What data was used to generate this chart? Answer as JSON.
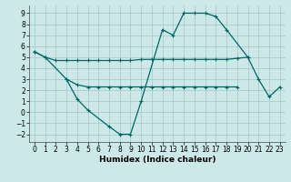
{
  "xlabel": "Humidex (Indice chaleur)",
  "xlim": [
    -0.5,
    23.5
  ],
  "ylim": [
    -2.7,
    9.7
  ],
  "yticks": [
    -2,
    -1,
    0,
    1,
    2,
    3,
    4,
    5,
    6,
    7,
    8,
    9
  ],
  "xticks": [
    0,
    1,
    2,
    3,
    4,
    5,
    6,
    7,
    8,
    9,
    10,
    11,
    12,
    13,
    14,
    15,
    16,
    17,
    18,
    19,
    20,
    21,
    22,
    23
  ],
  "bg_color": "#cce8e8",
  "grid_color": "#aacccc",
  "line_color": "#006666",
  "line1_x": [
    0,
    1,
    2,
    3,
    4,
    5,
    6,
    7,
    8,
    9,
    10,
    11,
    12,
    13,
    14,
    15,
    16,
    17,
    18,
    19,
    20
  ],
  "line1_y": [
    5.5,
    5.0,
    4.7,
    4.7,
    4.7,
    4.7,
    4.7,
    4.7,
    4.7,
    4.7,
    4.8,
    4.8,
    4.8,
    4.8,
    4.8,
    4.8,
    4.8,
    4.8,
    4.8,
    4.9,
    5.0
  ],
  "line2_x": [
    0,
    1,
    3,
    4,
    5,
    7,
    8,
    9,
    10,
    12,
    13,
    14,
    15,
    16,
    17,
    18,
    20,
    21,
    22,
    23
  ],
  "line2_y": [
    5.5,
    5.0,
    3.0,
    1.2,
    0.2,
    -1.3,
    -2.0,
    -2.0,
    1.0,
    7.5,
    7.0,
    9.0,
    9.0,
    9.0,
    8.7,
    7.5,
    5.0,
    3.0,
    1.4,
    2.3
  ],
  "line3_x": [
    3,
    4,
    5,
    6,
    7,
    8,
    9,
    10,
    11,
    12,
    13,
    14,
    15,
    16,
    17,
    18,
    19
  ],
  "line3_y": [
    3.0,
    2.5,
    2.3,
    2.3,
    2.3,
    2.3,
    2.3,
    2.3,
    2.3,
    2.3,
    2.3,
    2.3,
    2.3,
    2.3,
    2.3,
    2.3,
    2.3
  ],
  "figsize": [
    3.2,
    2.0
  ],
  "dpi": 100,
  "tick_fontsize": 5.5,
  "xlabel_fontsize": 6.5
}
